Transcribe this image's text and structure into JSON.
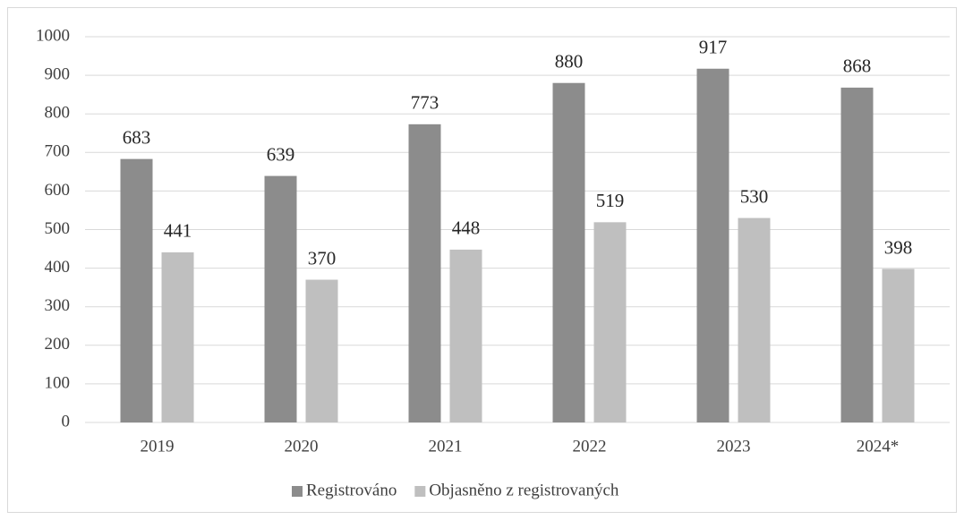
{
  "chart_data": {
    "type": "bar",
    "categories": [
      "2019",
      "2020",
      "2021",
      "2022",
      "2023",
      "2024*"
    ],
    "series": [
      {
        "name": "Registrováno",
        "color": "#8c8c8c",
        "values": [
          683,
          639,
          773,
          880,
          917,
          868
        ]
      },
      {
        "name": "Objasněno z registrovaných",
        "color": "#bfbfbf",
        "values": [
          441,
          370,
          448,
          519,
          530,
          398
        ]
      }
    ],
    "ylim": [
      0,
      1000
    ],
    "yticks": [
      0,
      100,
      200,
      300,
      400,
      500,
      600,
      700,
      800,
      900,
      1000
    ],
    "grid": true,
    "legend": "bottom"
  }
}
